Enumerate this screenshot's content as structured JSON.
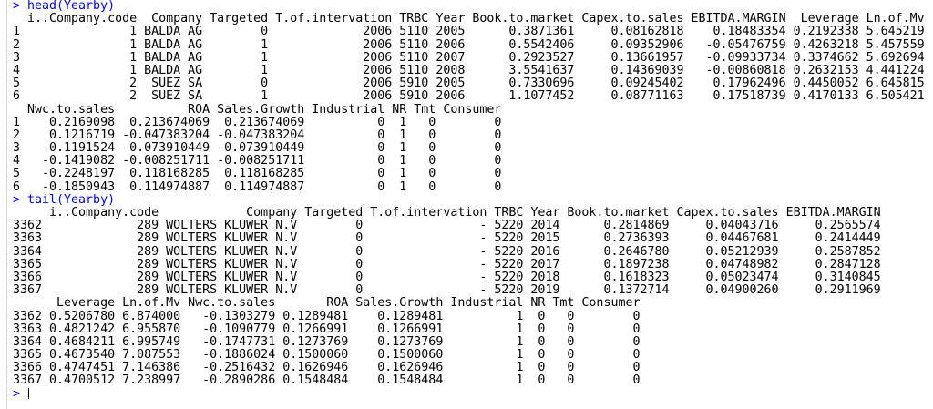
{
  "colors": {
    "command": "#0000ff",
    "output": "#000000",
    "background": "#ffffff"
  },
  "console": {
    "blocks": [
      {
        "command": "> head(Yearby)",
        "output": [
          "  i..Company.code  Company Targeted T.of.intervation TRBC Year Book.to.market Capex.to.sales EBITDA.MARGIN  Leverage Ln.of.Mv",
          "1               1 BALDA AG        0             2006 5110 2005      0.3871361     0.08162818    0.18483354 0.2192338 5.645219",
          "2               1 BALDA AG        1             2006 5110 2006      0.5542406     0.09352906   -0.05476759 0.4263218 5.457559",
          "3               1 BALDA AG        1             2006 5110 2007      0.2923527     0.13661957   -0.09933734 0.3374662 5.692694",
          "4               1 BALDA AG        1             2006 5110 2008      3.5541637     0.14369039   -0.00860818 0.2632153 4.441224",
          "5               2  SUEZ SA        0             2006 5910 2005      0.7330696     0.09245402    0.17962496 0.4450052 6.645815",
          "6               2  SUEZ SA        1             2006 5910 2006      1.1077452     0.08771163    0.17518739 0.4170133 6.505421",
          "  Nwc.to.sales          ROA Sales.Growth Industrial NR Tmt Consumer",
          "1    0.2169098  0.213674069  0.213674069          0  1   0        0",
          "2    0.1216719 -0.047383204 -0.047383204          0  1   0        0",
          "3   -0.1191524 -0.073910449 -0.073910449          0  1   0        0",
          "4   -0.1419082 -0.008251711 -0.008251711          0  1   0        0",
          "5   -0.2248197  0.118168285  0.118168285          0  1   0        0",
          "6   -0.1850943  0.114974887  0.114974887          0  1   0        0"
        ]
      },
      {
        "command": "> tail(Yearby)",
        "output": [
          "     i..Company.code            Company Targeted T.of.intervation TRBC Year Book.to.market Capex.to.sales EBITDA.MARGIN",
          "3362             289 WOLTERS KLUWER N.V        0                - 5220 2014      0.2814869     0.04043716     0.2565574",
          "3363             289 WOLTERS KLUWER N.V        0                - 5220 2015      0.2736393     0.04467681     0.2414449",
          "3364             289 WOLTERS KLUWER N.V        0                - 5220 2016      0.2646780     0.05212939     0.2587852",
          "3365             289 WOLTERS KLUWER N.V        0                - 5220 2017      0.1897238     0.04748982     0.2847128",
          "3366             289 WOLTERS KLUWER N.V        0                - 5220 2018      0.1618323     0.05023474     0.3140845",
          "3367             289 WOLTERS KLUWER N.V        0                - 5220 2019      0.1372714     0.04900260     0.2911969",
          "      Leverage Ln.of.Mv Nwc.to.sales       ROA Sales.Growth Industrial NR Tmt Consumer",
          "3362 0.5206780 6.874000   -0.1303279 0.1289481    0.1289481          1  0   0        0",
          "3363 0.4821242 6.955870   -0.1090779 0.1266991    0.1266991          1  0   0        0",
          "3364 0.4684211 6.995749   -0.1747731 0.1273769    0.1273769          1  0   0        0",
          "3365 0.4673540 7.087553   -0.1886024 0.1500060    0.1500060          1  0   0        0",
          "3366 0.4747451 7.146386   -0.2516432 0.1626946    0.1626946          1  0   0        0",
          "3367 0.4700512 7.238997   -0.2890286 0.1548484    0.1548484          1  0   0        0"
        ]
      }
    ],
    "prompt": "> "
  }
}
